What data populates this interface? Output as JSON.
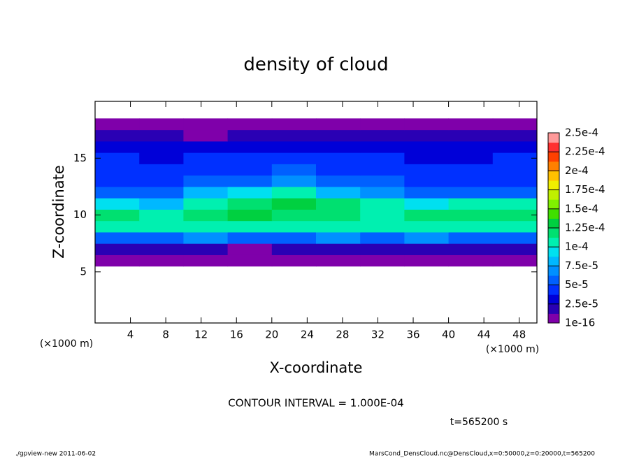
{
  "chart_data": {
    "type": "heatmap",
    "title": "density of cloud",
    "xlabel": "X-coordinate",
    "ylabel": "Z-coordinate",
    "x_unit_label": "(×1000 m)",
    "y_unit_label": "(×1000 m)",
    "annotation": "CONTOUR INTERVAL = 1.000E-04",
    "time_label": "t=565200 s",
    "footer_left": "./gpview-new  2011-06-02",
    "footer_right": "MarsCond_DensCloud.nc@DensCloud,x=0:50000,z=0:20000,t=565200",
    "xlim": [
      0,
      50
    ],
    "ylim": [
      0.5,
      20
    ],
    "xticks": [
      4,
      8,
      12,
      16,
      20,
      24,
      28,
      32,
      36,
      40,
      44,
      48
    ],
    "yticks": [
      5,
      10,
      15
    ],
    "x": [
      2.5,
      7.5,
      12.5,
      17.5,
      22.5,
      27.5,
      32.5,
      37.5,
      42.5,
      47.5
    ],
    "z": [
      6,
      7,
      8,
      9,
      10,
      11,
      12,
      13,
      14,
      15,
      16,
      17,
      18
    ],
    "values": [
      [
        2e-06,
        1.5e-06,
        3e-06,
        1.8e-06,
        4e-06,
        2e-06,
        2.5e-06,
        3e-06,
        2e-06,
        3e-06
      ],
      [
        1.8e-05,
        2e-05,
        1.5e-05,
        1.2e-05,
        2.2e-05,
        1.9e-05,
        2.1e-05,
        1.7e-05,
        2.4e-05,
        2e-05
      ],
      [
        6.2e-05,
        5.8e-05,
        6.5e-05,
        5.5e-05,
        6e-05,
        6.3e-05,
        5.9e-05,
        6.6e-05,
        5.7e-05,
        6.1e-05
      ],
      [
        0.000102,
        0.0001,
        0.000105,
        0.000108,
        0.000106,
        0.000103,
        0.000101,
        0.000104,
        0.000102,
        0.000105
      ],
      [
        0.000115,
        0.000108,
        0.00012,
        0.000125,
        0.000122,
        0.000118,
        0.000112,
        0.000116,
        0.00012,
        0.000114
      ],
      [
        9.8e-05,
        8.5e-05,
        0.00011,
        0.000122,
        0.000125,
        0.000115,
        0.0001,
        9.2e-05,
        0.000108,
        0.000104
      ],
      [
        5.5e-05,
        5e-05,
        7.5e-05,
        9.5e-05,
        0.000102,
        8.5e-05,
        6.5e-05,
        5.2e-05,
        6e-05,
        5.8e-05
      ],
      [
        4.6e-05,
        4.2e-05,
        5e-05,
        6.2e-05,
        6.8e-05,
        6e-05,
        5.2e-05,
        4e-05,
        4.5e-05,
        4.4e-05
      ],
      [
        4.2e-05,
        4e-05,
        4.5e-05,
        4.8e-05,
        5e-05,
        4.7e-05,
        4.6e-05,
        3.8e-05,
        4.1e-05,
        4.3e-05
      ],
      [
        3.8e-05,
        3.6e-05,
        3.9e-05,
        4.1e-05,
        4.2e-05,
        4e-05,
        4e-05,
        3.5e-05,
        3.7e-05,
        3.8e-05
      ],
      [
        2.6e-05,
        2.8e-05,
        2.7e-05,
        3e-05,
        2.9e-05,
        2.8e-05,
        3e-05,
        2.6e-05,
        2.7e-05,
        2.8e-05
      ],
      [
        1.3e-05,
        1.4e-05,
        1.2e-05,
        1.5e-05,
        1.6e-05,
        1.4e-05,
        1.3e-05,
        1.5e-05,
        1.4e-05,
        1.3e-05
      ],
      [
        2e-06,
        3e-06,
        2e-06,
        4e-06,
        3e-06,
        2e-06,
        3e-06,
        2e-06,
        3e-06,
        2e-06
      ]
    ],
    "colorbar_ticks": [
      1e-16,
      {
        "value": 2.5e-05,
        "label": "2.5e-5"
      },
      {
        "value": 5e-05,
        "label": "5e-5"
      },
      {
        "value": 7.5e-05,
        "label": "7.5e-5"
      },
      {
        "value": 0.0001,
        "label": "1e-4"
      },
      {
        "value": 0.000125,
        "label": "1.25e-4"
      },
      {
        "value": 0.00015,
        "label": "1.5e-4"
      },
      {
        "value": 0.000175,
        "label": "1.75e-4"
      },
      {
        "value": 0.0002,
        "label": "2e-4"
      },
      {
        "value": 0.000225,
        "label": "2.25e-4"
      },
      {
        "value": 0.00025,
        "label": "2.5e-4"
      }
    ],
    "colors": [
      "#7f00aa",
      "#2a00b4",
      "#0000d8",
      "#0030ff",
      "#0060ff",
      "#0090ff",
      "#00b8ff",
      "#00e0f0",
      "#00f0b0",
      "#00e070",
      "#00d040",
      "#40e000",
      "#80f000",
      "#c0f000",
      "#f0f000",
      "#ffc000",
      "#ff8000",
      "#ff4000",
      "#ff3030",
      "#ff9a9a"
    ]
  }
}
